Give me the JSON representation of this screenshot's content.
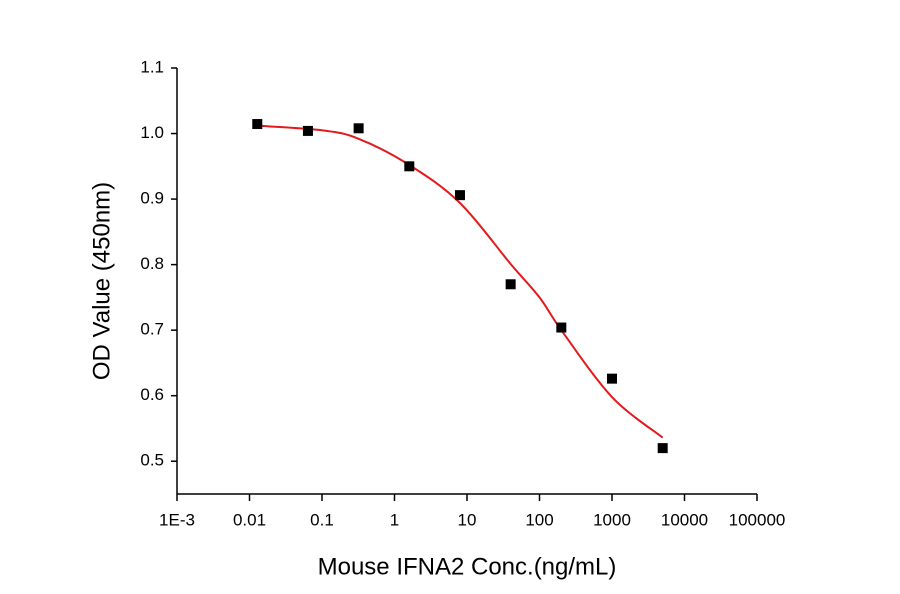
{
  "chart_data": {
    "type": "scatter",
    "x_label": "Mouse IFNA2 Conc.(ng/mL)",
    "y_label": "OD Value (450nm)",
    "x_scale": "log",
    "xlim": [
      0.001,
      100000
    ],
    "ylim": [
      0.45,
      1.1
    ],
    "xticks": [
      {
        "value": 0.001,
        "label": "1E-3"
      },
      0.01,
      0.1,
      1,
      10,
      100,
      1000,
      10000,
      100000
    ],
    "yticks": [
      0.5,
      0.6,
      0.7,
      0.8,
      0.9,
      {
        "value": 1,
        "label": "1.0"
      },
      1.1
    ],
    "series": [
      {
        "kind": "points",
        "color": "#000000",
        "x": [
          0.0128,
          0.064,
          0.32,
          1.6,
          8,
          40,
          200,
          1000,
          5000
        ],
        "values": [
          1.0145,
          1.004,
          1.008,
          0.95,
          0.906,
          0.77,
          0.704,
          0.626,
          0.52
        ]
      },
      {
        "kind": "fit",
        "color": "#e31a1c",
        "x": [
          0.0128,
          0.1,
          0.32,
          1.6,
          8,
          40,
          100,
          200,
          1000,
          5000
        ],
        "values": [
          1.012,
          1.005,
          0.992,
          0.952,
          0.894,
          0.801,
          0.75,
          0.7,
          0.598,
          0.536
        ]
      }
    ]
  }
}
